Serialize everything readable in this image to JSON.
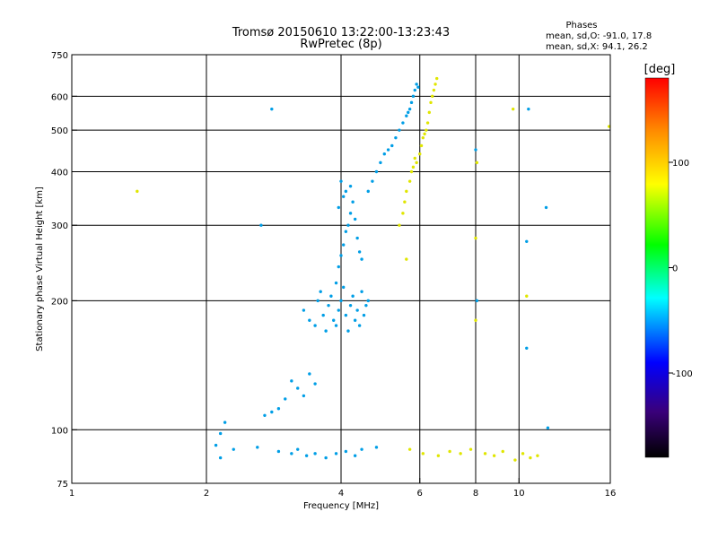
{
  "chart_data": {
    "type": "scatter",
    "title": "Tromsø 20150610 13:22:00-13:23:43",
    "subtitle": "RwPretec (8p)",
    "xlabel": "Frequency [MHz]",
    "ylabel": "Stationary phase Virtual Height [km]",
    "xscale": "log",
    "yscale": "log",
    "xlim": [
      1,
      16
    ],
    "ylim": [
      75,
      750
    ],
    "x_ticks": [
      1,
      2,
      4,
      6,
      8,
      10,
      16
    ],
    "y_ticks": [
      75,
      100,
      200,
      300,
      400,
      500,
      600,
      750
    ],
    "grid": true,
    "grid_x": [
      2,
      4,
      6,
      8,
      10
    ],
    "grid_y": [
      100,
      200,
      300,
      400,
      500,
      600
    ],
    "phase_stats": {
      "heading": "Phases",
      "o_line": "mean, sd,O: -91.0, 17.8",
      "x_line": "mean, sd,X:  94.1, 26.2"
    },
    "colorbar": {
      "label": "[deg]",
      "min": -180,
      "max": 180,
      "ticks": [
        100,
        0,
        -100
      ],
      "colormap": "rainbow"
    },
    "colors": {
      "o_mode": "#1a2ee6",
      "x_mode": "#f2c81a",
      "grid": "#000000"
    },
    "series": [
      {
        "mode": "O",
        "phase": -95,
        "points": [
          [
            3.3,
            190
          ],
          [
            3.4,
            180
          ],
          [
            3.5,
            175
          ],
          [
            3.55,
            200
          ],
          [
            3.6,
            210
          ],
          [
            3.65,
            185
          ],
          [
            3.7,
            170
          ],
          [
            3.75,
            195
          ],
          [
            3.8,
            205
          ],
          [
            3.85,
            180
          ],
          [
            3.9,
            175
          ],
          [
            3.95,
            190
          ],
          [
            4.0,
            200
          ],
          [
            4.05,
            215
          ],
          [
            4.1,
            185
          ],
          [
            4.15,
            170
          ],
          [
            4.2,
            195
          ],
          [
            4.25,
            205
          ],
          [
            4.3,
            180
          ],
          [
            4.35,
            190
          ],
          [
            4.4,
            175
          ],
          [
            4.45,
            210
          ],
          [
            4.5,
            185
          ],
          [
            4.55,
            195
          ],
          [
            4.6,
            200
          ],
          [
            3.9,
            220
          ],
          [
            3.95,
            240
          ],
          [
            4.0,
            255
          ],
          [
            4.05,
            270
          ],
          [
            4.1,
            290
          ],
          [
            4.15,
            300
          ],
          [
            4.2,
            320
          ],
          [
            4.25,
            340
          ],
          [
            4.3,
            310
          ],
          [
            4.35,
            280
          ],
          [
            4.4,
            260
          ],
          [
            4.45,
            250
          ],
          [
            4.1,
            360
          ],
          [
            4.0,
            380
          ],
          [
            4.05,
            350
          ],
          [
            4.2,
            370
          ],
          [
            3.95,
            330
          ],
          [
            4.6,
            360
          ],
          [
            4.7,
            380
          ],
          [
            4.8,
            400
          ],
          [
            4.9,
            420
          ],
          [
            5.0,
            440
          ],
          [
            5.1,
            450
          ],
          [
            5.2,
            460
          ],
          [
            5.3,
            480
          ],
          [
            5.4,
            500
          ],
          [
            5.5,
            520
          ],
          [
            5.6,
            540
          ],
          [
            5.7,
            560
          ],
          [
            5.8,
            600
          ],
          [
            5.85,
            620
          ],
          [
            5.9,
            640
          ],
          [
            5.95,
            630
          ],
          [
            5.75,
            580
          ],
          [
            5.65,
            550
          ],
          [
            3.1,
            130
          ],
          [
            3.2,
            125
          ],
          [
            3.3,
            120
          ],
          [
            3.4,
            135
          ],
          [
            3.5,
            128
          ],
          [
            3.0,
            118
          ],
          [
            2.9,
            112
          ],
          [
            2.8,
            110
          ],
          [
            2.7,
            108
          ],
          [
            2.2,
            104
          ],
          [
            2.15,
            98
          ],
          [
            2.1,
            92
          ],
          [
            2.3,
            90
          ],
          [
            2.6,
            91
          ],
          [
            2.9,
            89
          ],
          [
            3.1,
            88
          ],
          [
            3.2,
            90
          ],
          [
            3.35,
            87
          ],
          [
            3.5,
            88
          ],
          [
            3.7,
            86
          ],
          [
            3.9,
            88
          ],
          [
            4.1,
            89
          ],
          [
            4.3,
            87
          ],
          [
            4.45,
            90
          ],
          [
            4.8,
            91
          ],
          [
            2.8,
            560
          ],
          [
            2.65,
            300
          ],
          [
            8.05,
            200
          ],
          [
            8.0,
            450
          ],
          [
            10.5,
            560
          ],
          [
            11.5,
            330
          ],
          [
            10.4,
            275
          ],
          [
            10.4,
            155
          ],
          [
            11.6,
            101
          ],
          [
            2.15,
            86
          ]
        ]
      },
      {
        "mode": "X",
        "phase": 95,
        "points": [
          [
            5.4,
            300
          ],
          [
            5.5,
            320
          ],
          [
            5.55,
            340
          ],
          [
            5.6,
            360
          ],
          [
            5.7,
            380
          ],
          [
            5.75,
            400
          ],
          [
            5.8,
            410
          ],
          [
            5.9,
            420
          ],
          [
            6.0,
            440
          ],
          [
            6.05,
            460
          ],
          [
            6.1,
            480
          ],
          [
            6.2,
            500
          ],
          [
            6.25,
            520
          ],
          [
            6.3,
            550
          ],
          [
            6.35,
            580
          ],
          [
            6.4,
            600
          ],
          [
            6.45,
            620
          ],
          [
            6.5,
            640
          ],
          [
            6.55,
            660
          ],
          [
            5.85,
            430
          ],
          [
            6.15,
            490
          ],
          [
            5.6,
            250
          ],
          [
            1.4,
            360
          ],
          [
            5.7,
            90
          ],
          [
            6.1,
            88
          ],
          [
            6.6,
            87
          ],
          [
            7.0,
            89
          ],
          [
            7.4,
            88
          ],
          [
            7.8,
            90
          ],
          [
            8.4,
            88
          ],
          [
            8.8,
            87
          ],
          [
            9.2,
            89
          ],
          [
            9.7,
            560
          ],
          [
            9.8,
            85
          ],
          [
            10.2,
            88
          ],
          [
            10.6,
            86
          ],
          [
            11.0,
            87
          ],
          [
            8.0,
            280
          ],
          [
            8.0,
            180
          ],
          [
            10.4,
            205
          ],
          [
            8.05,
            420
          ],
          [
            15.9,
            510
          ]
        ]
      }
    ]
  }
}
